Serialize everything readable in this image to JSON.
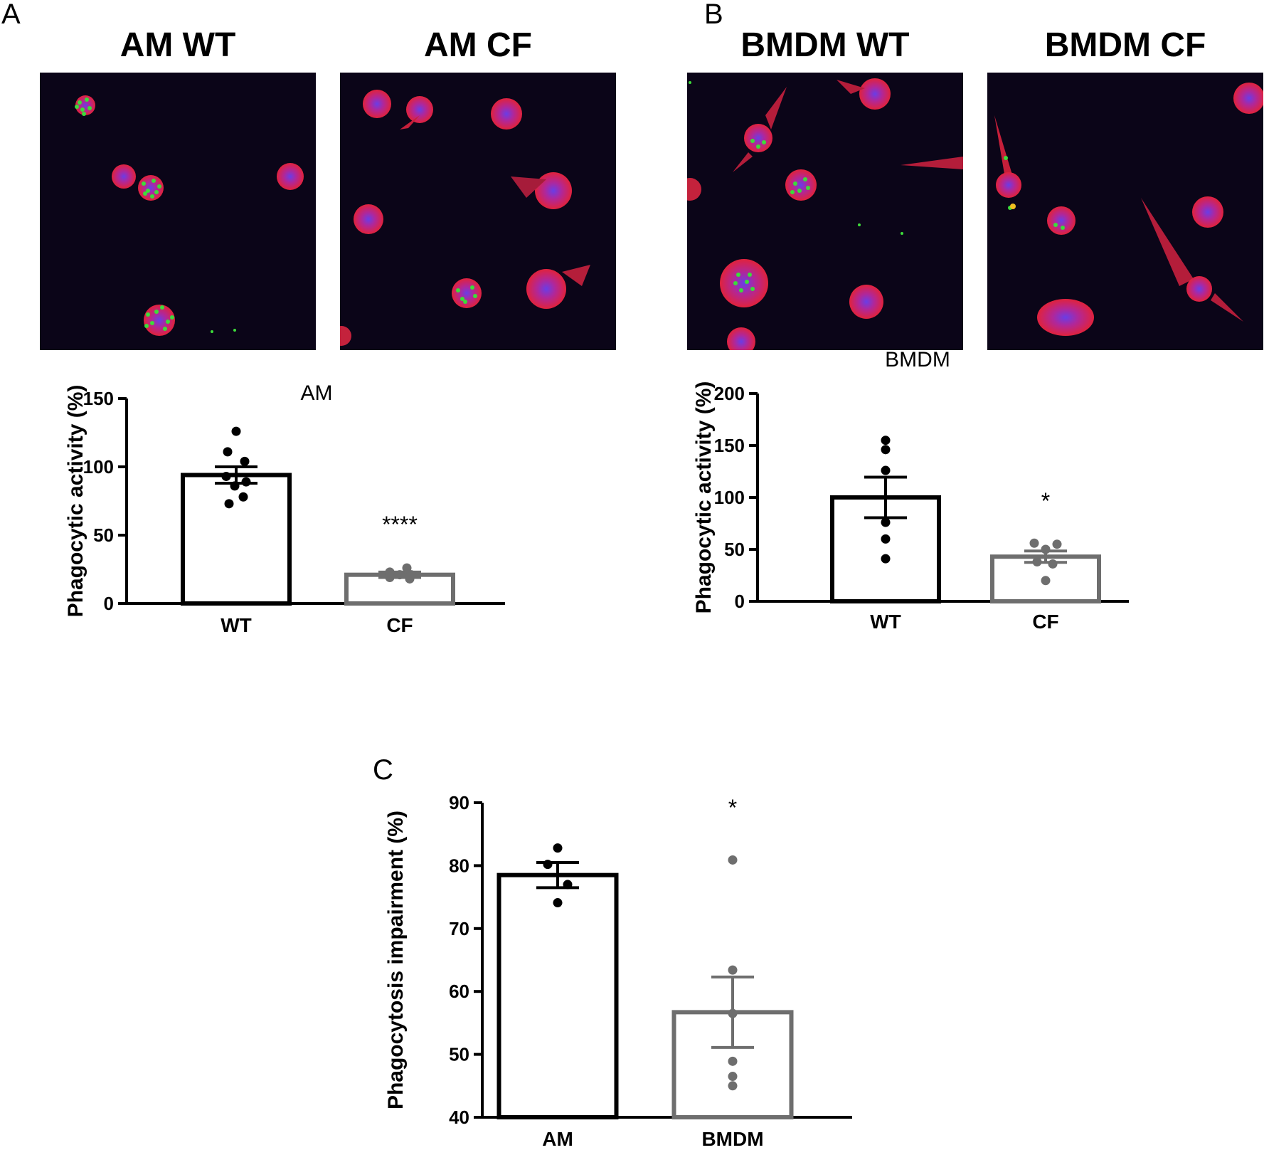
{
  "panels": {
    "A": {
      "letter": "A"
    },
    "B": {
      "letter": "B"
    },
    "C": {
      "letter": "C"
    }
  },
  "images": [
    {
      "title": "AM WT"
    },
    {
      "title": "AM CF"
    },
    {
      "title": "BMDM WT"
    },
    {
      "title": "BMDM CF"
    }
  ],
  "colors": {
    "wt": "#000000",
    "cf": "#6e6e6e",
    "cell_red": "#e0223c",
    "nucleus_blue": "#5a3ae0",
    "bead_green": "#3ddc3a",
    "image_bg": "#0b0518"
  },
  "chart_data": [
    {
      "type": "bar",
      "title": "AM",
      "ylabel": "Phagocytic activity (%)",
      "xlabel": "",
      "categories": [
        "WT",
        "CF"
      ],
      "ylim": [
        0,
        150
      ],
      "yticks": [
        0,
        50,
        100,
        150
      ],
      "values": [
        94,
        21
      ],
      "sem": [
        6,
        2
      ],
      "points": [
        [
          126,
          111,
          104,
          93,
          89,
          86,
          78,
          73
        ],
        [
          26,
          23,
          21,
          21,
          19,
          18
        ]
      ],
      "annotations": [
        {
          "category": "CF",
          "text": "****"
        }
      ]
    },
    {
      "type": "bar",
      "title": "BMDM",
      "ylabel": "Phagocytic activity (%)",
      "xlabel": "",
      "categories": [
        "WT",
        "CF"
      ],
      "ylim": [
        0,
        200
      ],
      "yticks": [
        0,
        50,
        100,
        150,
        200
      ],
      "values": [
        100,
        43
      ],
      "sem": [
        19.5,
        5.5
      ],
      "points": [
        [
          155,
          146,
          126,
          76,
          60,
          41
        ],
        [
          56,
          55,
          50,
          38,
          36,
          20
        ]
      ],
      "annotations": [
        {
          "category": "CF",
          "text": "*"
        }
      ]
    },
    {
      "type": "bar",
      "title": "",
      "ylabel": "Phagocytosis impairment (%)",
      "xlabel": "",
      "categories": [
        "AM",
        "BMDM"
      ],
      "ylim": [
        40,
        90
      ],
      "yticks": [
        40,
        50,
        60,
        70,
        80,
        90
      ],
      "values": [
        78.5,
        56.7
      ],
      "sem": [
        2.0,
        5.6
      ],
      "points": [
        [
          82.8,
          80.2,
          77.0,
          74.1
        ],
        [
          80.9,
          63.4,
          56.5,
          48.9,
          46.5,
          45.0
        ]
      ],
      "annotations": [
        {
          "category": "BMDM",
          "text": "*"
        }
      ]
    }
  ]
}
